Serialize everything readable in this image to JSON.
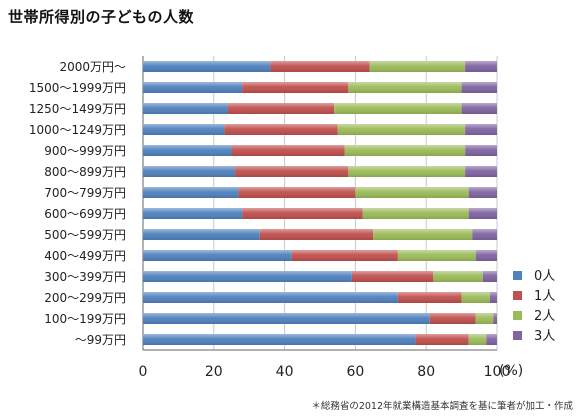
{
  "chart_data": {
    "type": "bar",
    "orientation": "horizontal",
    "stacked": true,
    "title": "世帯所得別の子どもの人数",
    "categories": [
      "2000万円～",
      "1500～1999万円",
      "1250～1499万円",
      "1000～1249万円",
      "900～999万円",
      "800～899万円",
      "700～799万円",
      "600～699万円",
      "500～599万円",
      "400～499万円",
      "300～399万円",
      "200～299万円",
      "100～199万円",
      "～99万円"
    ],
    "series": [
      {
        "name": "0人",
        "color": "#4f81bd",
        "values": [
          36,
          28,
          24,
          23,
          25,
          26,
          27,
          28,
          33,
          42,
          59,
          72,
          81,
          77
        ]
      },
      {
        "name": "1人",
        "color": "#c0504d",
        "values": [
          28,
          30,
          30,
          32,
          32,
          32,
          33,
          34,
          32,
          30,
          23,
          18,
          13,
          15
        ]
      },
      {
        "name": "2人",
        "color": "#9bbb59",
        "values": [
          27,
          32,
          36,
          36,
          34,
          33,
          32,
          30,
          28,
          22,
          14,
          8,
          5,
          5
        ]
      },
      {
        "name": "3人",
        "color": "#8064a2",
        "values": [
          9,
          10,
          10,
          9,
          9,
          9,
          8,
          8,
          7,
          6,
          4,
          2,
          1,
          3
        ]
      }
    ],
    "xlim": [
      0,
      100
    ],
    "xticks": [
      "0",
      "20",
      "40",
      "60",
      "80",
      "100"
    ],
    "xunit": "(%)",
    "legend_position": "right",
    "grid": "vertical"
  },
  "source_note": "＊総務省の2012年就業構造基本調査を基に筆者が加工・作成"
}
